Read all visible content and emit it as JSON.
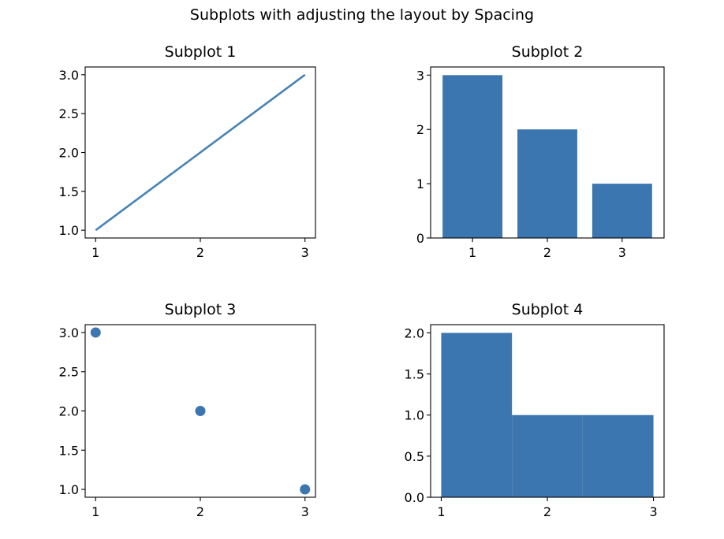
{
  "figure": {
    "suptitle": "Subplots with adjusting the layout by Spacing",
    "accent_color": "#3c76b0"
  },
  "chart_data": [
    {
      "type": "line",
      "title": "Subplot 1",
      "x": [
        1,
        2,
        3
      ],
      "y": [
        1,
        2,
        3
      ],
      "xlim": [
        0.9,
        3.1
      ],
      "ylim": [
        0.9,
        3.1
      ],
      "xticks": [
        1,
        2,
        3
      ],
      "xtick_labels": [
        "1",
        "2",
        "3"
      ],
      "yticks": [
        1.0,
        1.5,
        2.0,
        2.5,
        3.0
      ],
      "ytick_labels": [
        "1.0",
        "1.5",
        "2.0",
        "2.5",
        "3.0"
      ],
      "grid": false,
      "color": "#4682b4"
    },
    {
      "type": "bar",
      "title": "Subplot 2",
      "categories": [
        1,
        2,
        3
      ],
      "values": [
        3,
        2,
        1
      ],
      "bar_width": 0.8,
      "xlim": [
        0.44,
        3.56
      ],
      "ylim": [
        0,
        3.15
      ],
      "xticks": [
        1,
        2,
        3
      ],
      "xtick_labels": [
        "1",
        "2",
        "3"
      ],
      "yticks": [
        0,
        1,
        2,
        3
      ],
      "ytick_labels": [
        "0",
        "1",
        "2",
        "3"
      ],
      "grid": false,
      "color": "#3c76b0"
    },
    {
      "type": "scatter",
      "title": "Subplot 3",
      "x": [
        1,
        2,
        3
      ],
      "y": [
        3,
        2,
        1
      ],
      "xlim": [
        0.9,
        3.1
      ],
      "ylim": [
        0.9,
        3.1
      ],
      "xticks": [
        1,
        2,
        3
      ],
      "xtick_labels": [
        "1",
        "2",
        "3"
      ],
      "yticks": [
        1.0,
        1.5,
        2.0,
        2.5,
        3.0
      ],
      "ytick_labels": [
        "1.0",
        "1.5",
        "2.0",
        "2.5",
        "3.0"
      ],
      "grid": false,
      "color": "#3c76b0"
    },
    {
      "type": "bar",
      "subtype": "histogram",
      "title": "Subplot 4",
      "bins": [
        {
          "start": 1.0,
          "end": 1.6667,
          "count": 2
        },
        {
          "start": 1.6667,
          "end": 2.3333,
          "count": 1
        },
        {
          "start": 2.3333,
          "end": 3.0,
          "count": 1
        }
      ],
      "xlim": [
        0.9,
        3.1
      ],
      "ylim": [
        0,
        2.1
      ],
      "xticks": [
        1,
        2,
        3
      ],
      "xtick_labels": [
        "1",
        "2",
        "3"
      ],
      "yticks": [
        0.0,
        0.5,
        1.0,
        1.5,
        2.0
      ],
      "ytick_labels": [
        "0.0",
        "0.5",
        "1.0",
        "1.5",
        "2.0"
      ],
      "grid": false,
      "color": "#3c76b0"
    }
  ]
}
